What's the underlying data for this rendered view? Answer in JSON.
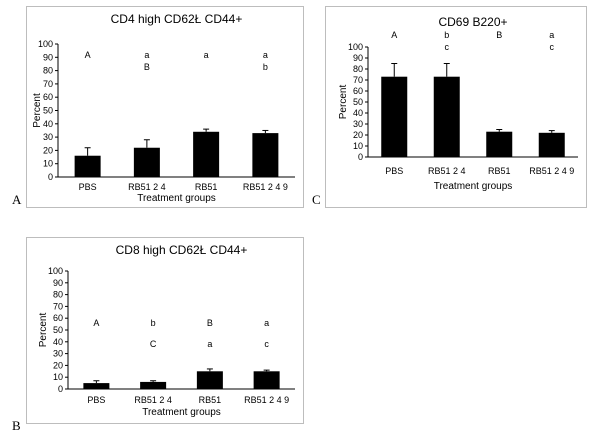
{
  "chart_data": [
    {
      "panel": "A",
      "type": "bar",
      "title": "CD4 high CD62Ł CD44+",
      "xlabel": "Treatment groups",
      "ylabel": "Percent",
      "categories": [
        "PBS",
        "RB51 2 4",
        "RB51",
        "RB51 2 4 9"
      ],
      "values": [
        16,
        22,
        34,
        33
      ],
      "error": [
        6,
        6,
        2,
        2
      ],
      "ylim": [
        0,
        100
      ],
      "yticks": [
        0,
        10,
        20,
        30,
        40,
        50,
        60,
        70,
        80,
        90,
        100
      ],
      "bar_color": "#000000",
      "annotations": [
        [
          "A"
        ],
        [
          "a",
          "B"
        ],
        [
          "a"
        ],
        [
          "a",
          "b"
        ]
      ]
    },
    {
      "panel": "C",
      "type": "bar",
      "title": "CD69 B220+",
      "xlabel": "Treatment groups",
      "ylabel": "Percent",
      "categories": [
        "PBS",
        "RB51 2 4",
        "RB51",
        "RB51 2 4 9"
      ],
      "values": [
        73,
        73,
        23,
        22
      ],
      "error": [
        12,
        12,
        2,
        2
      ],
      "ylim": [
        0,
        100
      ],
      "yticks": [
        0,
        10,
        20,
        30,
        40,
        50,
        60,
        70,
        80,
        90,
        100
      ],
      "bar_color": "#000000",
      "annotations": [
        [
          "A"
        ],
        [
          "b",
          "c"
        ],
        [
          "B"
        ],
        [
          "a",
          "c"
        ]
      ]
    },
    {
      "panel": "B",
      "type": "bar",
      "title": "CD8 high CD62Ł CD44+",
      "xlabel": "Treatment groups",
      "ylabel": "Percent",
      "categories": [
        "PBS",
        "RB51 2 4",
        "RB51",
        "RB51 2 4 9"
      ],
      "values": [
        5,
        6,
        15,
        15
      ],
      "error": [
        2,
        1,
        2,
        1
      ],
      "ylim": [
        0,
        100
      ],
      "yticks": [
        0,
        10,
        20,
        30,
        40,
        50,
        60,
        70,
        80,
        90,
        100
      ],
      "bar_color": "#000000",
      "annotations": [
        [
          "A"
        ],
        [
          "b",
          "C"
        ],
        [
          "B",
          "a"
        ],
        [
          "a",
          "c"
        ]
      ]
    }
  ]
}
